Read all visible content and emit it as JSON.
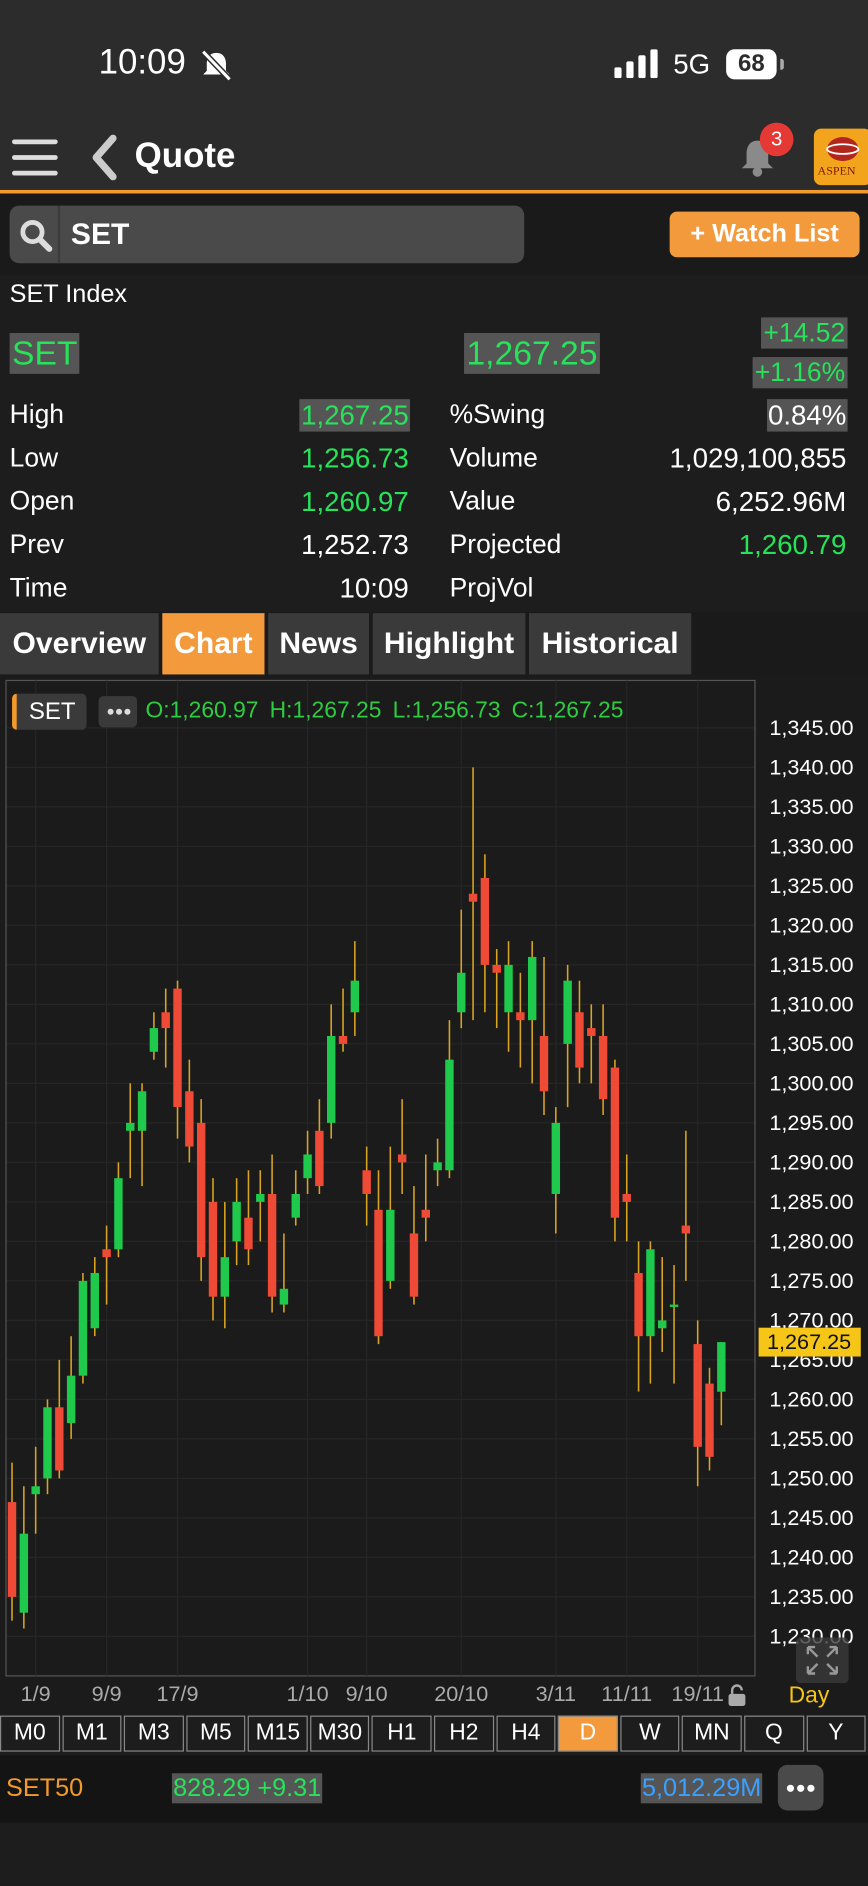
{
  "status_bar": {
    "time": "10:09",
    "network": "5G",
    "battery": "68"
  },
  "header": {
    "title": "Quote",
    "badge": "3",
    "logo": "ASPEN"
  },
  "search": {
    "query": "SET",
    "watch_button": "+ Watch List"
  },
  "quote": {
    "name": "SET Index",
    "symbol": "SET",
    "last": "1,267.25",
    "change": "+14.52",
    "change_pct": "+1.16%",
    "stats_left": [
      {
        "label": "High",
        "value": "1,267.25"
      },
      {
        "label": "Low",
        "value": "1,256.73"
      },
      {
        "label": "Open",
        "value": "1,260.97"
      },
      {
        "label": "Prev",
        "value": "1,252.73"
      },
      {
        "label": "Time",
        "value": "10:09"
      }
    ],
    "stats_right": [
      {
        "label": "%Swing",
        "value": "0.84%"
      },
      {
        "label": "Volume",
        "value": "1,029,100,855"
      },
      {
        "label": "Value",
        "value": "6,252.96M"
      },
      {
        "label": "Projected",
        "value": "1,260.79"
      },
      {
        "label": "ProjVol"
      }
    ]
  },
  "tabs": {
    "items": [
      "Overview",
      "Chart",
      "News",
      "Highlight",
      "Historical"
    ],
    "selected": 1
  },
  "chart_data": {
    "type": "candlestick",
    "symbol": "SET",
    "ohlc_summary": "O:1,260.97 H:1,267.25 L:1,256.73 C:1,267.25",
    "interval": "Day",
    "up_color": "#1ec94c",
    "down_color": "#ef4a35",
    "wick_color": "#d9a520",
    "categories": [
      null,
      null,
      "1/9",
      null,
      null,
      null,
      null,
      null,
      "9/9",
      null,
      null,
      null,
      null,
      null,
      "17/9",
      null,
      null,
      null,
      null,
      null,
      null,
      null,
      null,
      null,
      null,
      "1/10",
      null,
      null,
      null,
      null,
      "9/10",
      null,
      null,
      null,
      null,
      null,
      null,
      null,
      "20/10",
      null,
      null,
      null,
      null,
      null,
      null,
      null,
      "3/11",
      null,
      null,
      null,
      null,
      null,
      "11/11",
      null,
      null,
      null,
      null,
      null,
      "19/11",
      null,
      null
    ],
    "open": [
      1247,
      1233,
      1248,
      1250,
      1259,
      1257,
      1263,
      1269,
      1279,
      1279,
      1294,
      1294,
      1304,
      1309,
      1312,
      1299,
      1295,
      1285,
      1273,
      1280,
      1283,
      1285,
      1286,
      1272,
      1283,
      1288,
      1294,
      1295,
      1306,
      1309,
      1289,
      1284,
      1275,
      1291,
      1281,
      1284,
      1289,
      1289,
      1309,
      1324,
      1326,
      1315,
      1309,
      1309,
      1308,
      1306,
      1286,
      1305,
      1309,
      1307,
      1306,
      1302,
      1286,
      1276,
      1268,
      1269,
      1272,
      1282,
      1267,
      1262,
      1260.97
    ],
    "high": [
      1252,
      1249,
      1254,
      1260,
      1265,
      1268,
      1276,
      1278,
      1282,
      1290,
      1300,
      1300,
      1309,
      1312,
      1313,
      1303,
      1298,
      1288,
      1285,
      1288,
      1289,
      1289,
      1291,
      1281,
      1289,
      1294,
      1298,
      1310,
      1312,
      1318,
      1292,
      1289,
      1292,
      1298,
      1287,
      1291,
      1293,
      1308,
      1322,
      1340,
      1329,
      1317,
      1318,
      1314,
      1318,
      1316,
      1297,
      1315,
      1313,
      1310,
      1310,
      1303,
      1291,
      1280,
      1280,
      1278,
      1277,
      1294,
      1270,
      1264,
      1267.25
    ],
    "low": [
      1232,
      1231,
      1243,
      1248,
      1250,
      1255,
      1262,
      1268,
      1272,
      1278,
      1288,
      1287,
      1303,
      1302,
      1293,
      1290,
      1275,
      1270,
      1269,
      1277,
      1277,
      1280,
      1271,
      1271,
      1282,
      1286,
      1286,
      1293,
      1304,
      1306,
      1282,
      1267,
      1274,
      1286,
      1272,
      1280,
      1287,
      1288,
      1307,
      1308,
      1309,
      1307,
      1304,
      1302,
      1300,
      1296,
      1281,
      1297,
      1300,
      1300,
      1296,
      1280,
      1280,
      1261,
      1262,
      1266,
      1262,
      1275,
      1249,
      1251,
      1256.73
    ],
    "close": [
      1235,
      1243,
      1249,
      1259,
      1251,
      1263,
      1275,
      1276,
      1278,
      1288,
      1295,
      1299,
      1307,
      1307,
      1297,
      1292,
      1278,
      1273,
      1278,
      1285,
      1279,
      1286,
      1273,
      1274,
      1286,
      1291,
      1287,
      1306,
      1305,
      1313,
      1286,
      1268,
      1284,
      1290,
      1273,
      1283,
      1290,
      1303,
      1314,
      1323,
      1315,
      1314,
      1315,
      1308,
      1316,
      1299,
      1295,
      1313,
      1302,
      1306,
      1298,
      1283,
      1285,
      1268,
      1279,
      1270,
      1272,
      1281,
      1254,
      1252.73,
      1267.25
    ],
    "ylim": [
      1225,
      1351
    ],
    "yticks": [
      {
        "value": 1230,
        "label": "1,230.00"
      },
      {
        "value": 1235,
        "label": "1,235.00"
      },
      {
        "value": 1240,
        "label": "1,240.00"
      },
      {
        "value": 1245,
        "label": "1,245.00"
      },
      {
        "value": 1250,
        "label": "1,250.00"
      },
      {
        "value": 1255,
        "label": "1,255.00"
      },
      {
        "value": 1260,
        "label": "1,260.00"
      },
      {
        "value": 1265,
        "label": "1,265.00"
      },
      {
        "value": 1270,
        "label": "1,270.00"
      },
      {
        "value": 1275,
        "label": "1,275.00"
      },
      {
        "value": 1280,
        "label": "1,280.00"
      },
      {
        "value": 1285,
        "label": "1,285.00"
      },
      {
        "value": 1290,
        "label": "1,290.00"
      },
      {
        "value": 1295,
        "label": "1,295.00"
      },
      {
        "value": 1300,
        "label": "1,300.00"
      },
      {
        "value": 1305,
        "label": "1,305.00"
      },
      {
        "value": 1310,
        "label": "1,310.00"
      },
      {
        "value": 1315,
        "label": "1,315.00"
      },
      {
        "value": 1320,
        "label": "1,320.00"
      },
      {
        "value": 1325,
        "label": "1,325.00"
      },
      {
        "value": 1330,
        "label": "1,330.00"
      },
      {
        "value": 1335,
        "label": "1,335.00"
      },
      {
        "value": 1340,
        "label": "1,340.00"
      },
      {
        "value": 1345,
        "label": "1,345.00"
      }
    ],
    "last_price": {
      "value": 1267.25,
      "label": "1,267.25"
    }
  },
  "timeframes": {
    "items": [
      "M0",
      "M1",
      "M3",
      "M5",
      "M15",
      "M30",
      "H1",
      "H2",
      "H4",
      "D",
      "W",
      "MN",
      "Q",
      "Y"
    ],
    "selected": 9
  },
  "footer": {
    "symbol": "SET50",
    "quote": "828.29 +9.31",
    "value": "5,012.29M"
  }
}
